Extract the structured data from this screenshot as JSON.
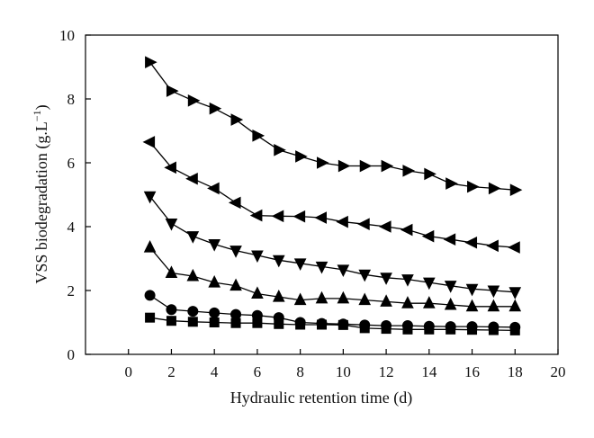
{
  "chart_data": {
    "type": "line",
    "xlabel": "Hydraulic retention time (d)",
    "ylabel": "VSS biodegradation (g.L",
    "ylabel_sup": "−1",
    "ylabel_close": ")",
    "xlim": [
      -2,
      20
    ],
    "ylim": [
      0,
      10
    ],
    "xticks": [
      0,
      2,
      4,
      6,
      8,
      10,
      12,
      14,
      16,
      18,
      20
    ],
    "yticks": [
      0,
      2,
      4,
      6,
      8,
      10
    ],
    "grid": false,
    "legend": "none",
    "x": [
      1,
      2,
      3,
      4,
      5,
      6,
      7,
      8,
      9,
      10,
      11,
      12,
      13,
      14,
      15,
      16,
      17,
      18
    ],
    "series": [
      {
        "marker": "triangle-right",
        "color": "#000000",
        "values": [
          9.15,
          8.25,
          7.95,
          7.7,
          7.35,
          6.85,
          6.4,
          6.2,
          6.0,
          5.9,
          5.9,
          5.9,
          5.75,
          5.65,
          5.35,
          5.25,
          5.2,
          5.15
        ]
      },
      {
        "marker": "triangle-left",
        "color": "#000000",
        "values": [
          6.65,
          5.85,
          5.5,
          5.2,
          4.75,
          4.35,
          4.33,
          4.32,
          4.28,
          4.15,
          4.08,
          4.0,
          3.9,
          3.7,
          3.6,
          3.5,
          3.4,
          3.35
        ]
      },
      {
        "marker": "triangle-down",
        "color": "#000000",
        "values": [
          4.95,
          4.1,
          3.7,
          3.45,
          3.25,
          3.1,
          2.95,
          2.85,
          2.75,
          2.65,
          2.5,
          2.4,
          2.35,
          2.25,
          2.15,
          2.05,
          2.0,
          1.95
        ]
      },
      {
        "marker": "triangle-up",
        "color": "#000000",
        "values": [
          3.35,
          2.55,
          2.45,
          2.25,
          2.15,
          1.9,
          1.8,
          1.7,
          1.75,
          1.75,
          1.7,
          1.65,
          1.6,
          1.6,
          1.55,
          1.5,
          1.5,
          1.5
        ]
      },
      {
        "marker": "circle",
        "color": "#000000",
        "values": [
          1.85,
          1.4,
          1.35,
          1.3,
          1.25,
          1.22,
          1.15,
          1.0,
          0.97,
          0.95,
          0.92,
          0.9,
          0.9,
          0.88,
          0.87,
          0.87,
          0.86,
          0.85
        ]
      },
      {
        "marker": "square",
        "color": "#000000",
        "values": [
          1.15,
          1.05,
          1.02,
          1.0,
          0.98,
          0.98,
          0.95,
          0.93,
          0.93,
          0.92,
          0.82,
          0.8,
          0.78,
          0.78,
          0.78,
          0.77,
          0.76,
          0.75
        ]
      }
    ]
  }
}
